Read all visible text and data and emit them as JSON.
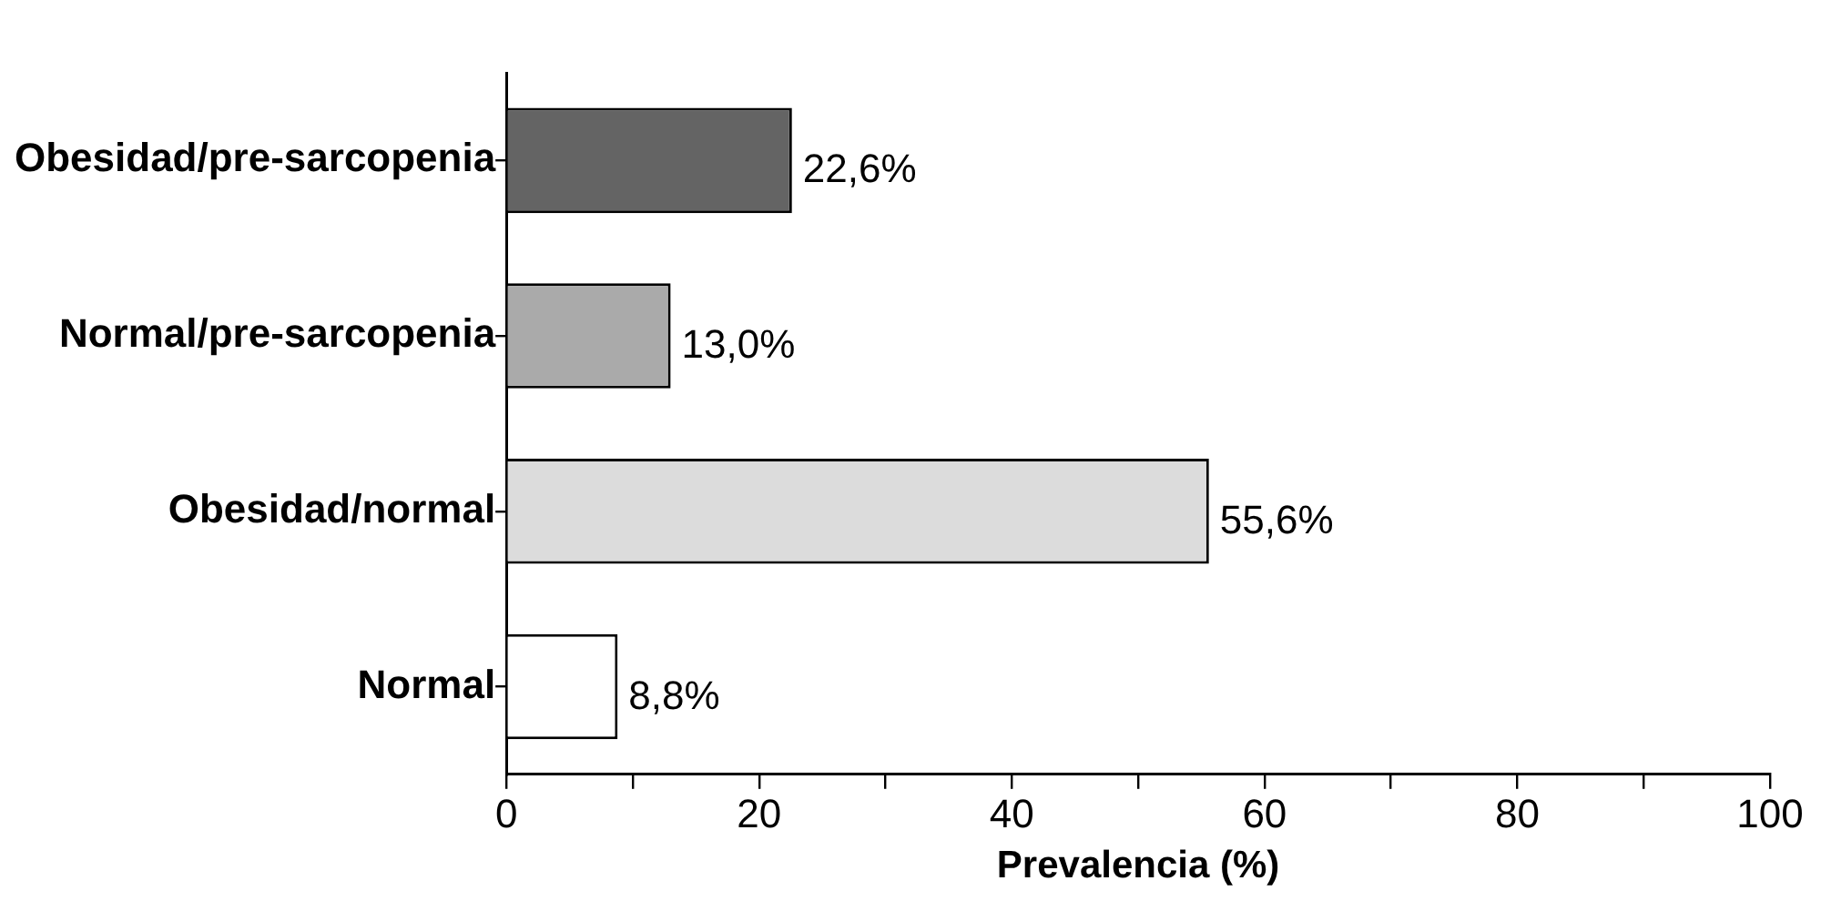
{
  "chart_data": {
    "type": "bar",
    "orientation": "horizontal",
    "categories": [
      "Obesidad/pre-sarcopenia",
      "Normal/pre-sarcopenia",
      "Obesidad/normal",
      "Normal"
    ],
    "values": [
      22.6,
      13.0,
      55.6,
      8.8
    ],
    "colors": [
      "#646464",
      "#aaaaaa",
      "#dcdcdc",
      "#ffffff"
    ],
    "value_labels": [
      "22,6%",
      "13,0%",
      "55,6%",
      "8,8%"
    ],
    "xlim": [
      0,
      100
    ],
    "xticks": [
      0,
      {
        "value": 10,
        "label": null
      },
      20,
      {
        "value": 30,
        "label": null
      },
      40,
      {
        "value": 50,
        "label": null
      },
      60,
      {
        "value": 70,
        "label": null
      },
      80,
      {
        "value": 90,
        "label": null
      },
      100
    ],
    "xlabel": "Prevalencia (%)"
  }
}
